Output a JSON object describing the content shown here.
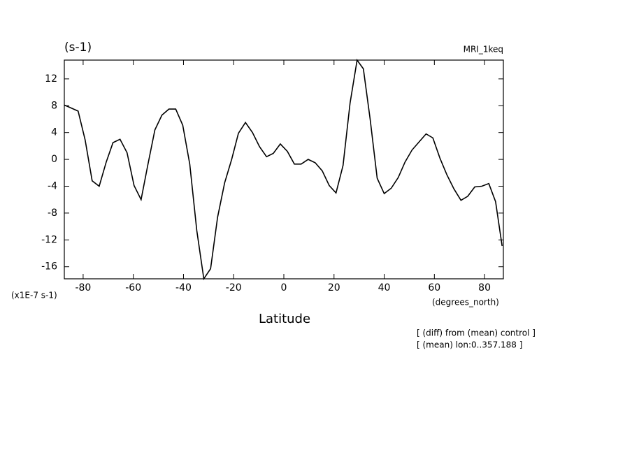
{
  "chart_data": {
    "type": "line",
    "title": "(s-1)",
    "subtitle": "MRI_1keq",
    "y_unit_label": "(x1E-7 s-1)",
    "x_unit_label": "(degrees_north)",
    "xlabel": "Latitude",
    "annotations": [
      "[ (diff) from (mean) control ]",
      "[ (mean) lon:0..357.188 ]"
    ],
    "x": [
      -87.5,
      -85.6,
      -82.0,
      -79.2,
      -76.4,
      -73.6,
      -70.8,
      -68.1,
      -65.3,
      -62.5,
      -59.7,
      -56.9,
      -54.2,
      -51.4,
      -48.6,
      -45.8,
      -43.1,
      -40.3,
      -37.5,
      -34.7,
      -31.9,
      -29.2,
      -26.4,
      -23.6,
      -20.8,
      -18.1,
      -15.3,
      -12.5,
      -9.7,
      -6.9,
      -4.2,
      -1.4,
      1.4,
      4.2,
      6.9,
      9.7,
      12.5,
      15.3,
      18.1,
      20.8,
      23.6,
      26.4,
      29.2,
      31.7,
      34.4,
      37.2,
      40.0,
      42.8,
      45.6,
      48.3,
      51.1,
      53.9,
      56.7,
      59.4,
      62.2,
      65.0,
      67.8,
      70.6,
      73.3,
      76.1,
      78.9,
      81.7,
      84.4,
      87.0
    ],
    "series": [
      {
        "color": "#000000",
        "values": [
          8.1,
          7.8,
          7.2,
          2.9,
          -3.2,
          -4.0,
          -0.4,
          2.5,
          3.0,
          1.0,
          -3.9,
          -6.0,
          -0.8,
          4.4,
          6.6,
          7.5,
          7.5,
          5.1,
          -0.7,
          -10.6,
          -17.8,
          -16.3,
          -8.6,
          -3.5,
          0,
          3.9,
          5.5,
          4.0,
          1.9,
          0.4,
          0.9,
          2.3,
          1.2,
          -0.7,
          -0.7,
          0,
          -0.5,
          -1.7,
          -3.9,
          -5.0,
          -0.9,
          8.4,
          14.8,
          13.5,
          6.0,
          -2.8,
          -5.1,
          -4.3,
          -2.7,
          -0.4,
          1.4,
          2.6,
          3.8,
          3.2,
          0.2,
          -2.3,
          -4.4,
          -6.1,
          -5.5,
          -4.1,
          -4.0,
          -3.6,
          -6.3,
          -12.9
        ]
      }
    ],
    "xlim": [
      -87.5,
      87.5
    ],
    "ylim": [
      -17.8,
      14.8
    ],
    "xticks": [
      -80,
      -60,
      -40,
      -20,
      0,
      20,
      40,
      60,
      80
    ],
    "yticks": [
      -16,
      -12,
      -8,
      -4,
      0,
      4,
      8,
      12
    ]
  }
}
